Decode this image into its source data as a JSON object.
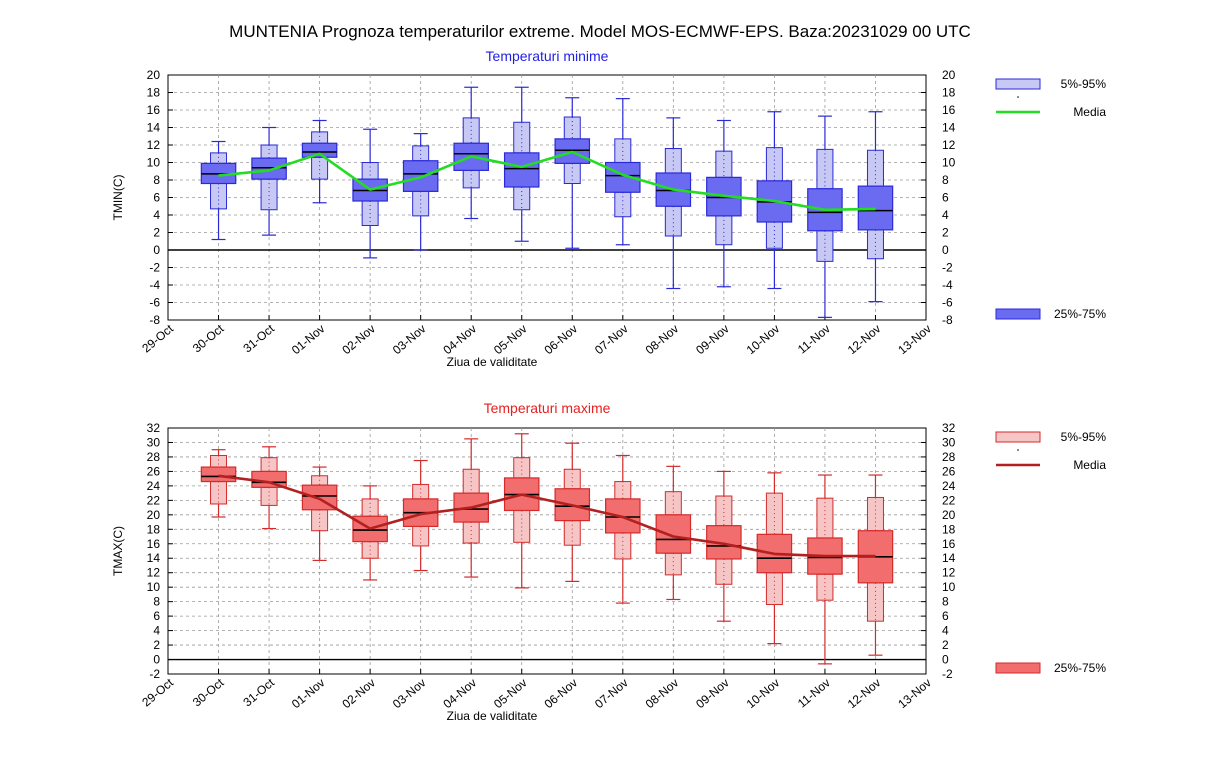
{
  "title": "MUNTENIA  Prognoza temperaturilor extreme.  Model MOS-ECMWF-EPS. Baza:20231029 00 UTC",
  "colors": {
    "min_light": "#c8c8f4",
    "min_dark": "#6b6bf2",
    "min_stroke": "#2a2ad8",
    "min_line": "#22dd22",
    "min_title": "#1f1fe6",
    "max_light": "#f6c6c6",
    "max_dark": "#f26d6d",
    "max_stroke": "#d42a2a",
    "max_line": "#b22020",
    "max_title": "#e61f1f"
  },
  "chart_data": [
    {
      "type": "box",
      "id": "tmin",
      "title": "Temperaturi minime",
      "xlabel": "Ziua de validitate",
      "ylabel": "TMIN(C)",
      "ylim": [
        -8,
        20
      ],
      "yticks": [
        -8,
        -6,
        -4,
        -2,
        0,
        2,
        4,
        6,
        8,
        10,
        12,
        14,
        16,
        18,
        20
      ],
      "x_ticklabels": [
        "29-Oct",
        "30-Oct",
        "31-Oct",
        "01-Nov",
        "02-Nov",
        "03-Nov",
        "04-Nov",
        "05-Nov",
        "06-Nov",
        "07-Nov",
        "08-Nov",
        "09-Nov",
        "10-Nov",
        "11-Nov",
        "12-Nov",
        "13-Nov"
      ],
      "categories": [
        "30-Oct",
        "31-Oct",
        "01-Nov",
        "02-Nov",
        "03-Nov",
        "04-Nov",
        "05-Nov",
        "06-Nov",
        "07-Nov",
        "08-Nov",
        "09-Nov",
        "10-Nov",
        "11-Nov",
        "12-Nov"
      ],
      "boxes": [
        {
          "min": 1.2,
          "p5": 4.7,
          "p25": 7.6,
          "median": 8.7,
          "p75": 9.9,
          "p95": 11.1,
          "max": 12.4
        },
        {
          "min": 1.7,
          "p5": 4.6,
          "p25": 8.1,
          "median": 9.4,
          "p75": 10.5,
          "p95": 12.0,
          "max": 14.0
        },
        {
          "min": 5.4,
          "p5": 8.1,
          "p25": 10.6,
          "median": 11.2,
          "p75": 12.2,
          "p95": 13.5,
          "max": 14.8
        },
        {
          "min": -0.9,
          "p5": 2.8,
          "p25": 5.6,
          "median": 6.8,
          "p75": 8.1,
          "p95": 10.0,
          "max": 13.8
        },
        {
          "min": 0.0,
          "p5": 3.9,
          "p25": 6.7,
          "median": 8.7,
          "p75": 10.2,
          "p95": 11.9,
          "max": 13.3
        },
        {
          "min": 3.6,
          "p5": 7.1,
          "p25": 9.1,
          "median": 11.0,
          "p75": 12.2,
          "p95": 15.1,
          "max": 18.6
        },
        {
          "min": 1.0,
          "p5": 4.6,
          "p25": 7.2,
          "median": 9.3,
          "p75": 11.1,
          "p95": 14.6,
          "max": 18.6
        },
        {
          "min": 0.2,
          "p5": 7.6,
          "p25": 9.9,
          "median": 11.4,
          "p75": 12.7,
          "p95": 15.2,
          "max": 17.4
        },
        {
          "min": 0.6,
          "p5": 3.8,
          "p25": 6.6,
          "median": 8.5,
          "p75": 10.0,
          "p95": 12.7,
          "max": 17.3
        },
        {
          "min": -4.4,
          "p5": 1.6,
          "p25": 5.0,
          "median": 6.8,
          "p75": 8.8,
          "p95": 11.6,
          "max": 15.1
        },
        {
          "min": -4.2,
          "p5": 0.6,
          "p25": 3.9,
          "median": 6.0,
          "p75": 8.3,
          "p95": 11.3,
          "max": 14.8
        },
        {
          "min": -4.4,
          "p5": 0.2,
          "p25": 3.2,
          "median": 5.5,
          "p75": 7.9,
          "p95": 11.7,
          "max": 15.8
        },
        {
          "min": -7.7,
          "p5": -1.3,
          "p25": 2.2,
          "median": 4.3,
          "p75": 7.0,
          "p95": 11.5,
          "max": 15.3
        },
        {
          "min": -5.9,
          "p5": -1.0,
          "p25": 2.3,
          "median": 4.5,
          "p75": 7.3,
          "p95": 11.4,
          "max": 15.8
        }
      ],
      "mean": [
        8.5,
        9.1,
        11.0,
        6.9,
        8.3,
        10.7,
        9.5,
        11.2,
        8.6,
        6.9,
        6.2,
        5.6,
        4.6,
        4.7
      ],
      "legend": {
        "band_5_95": "5%-95%",
        "mean": "Media",
        "band_25_75": "25%-75%"
      }
    },
    {
      "type": "box",
      "id": "tmax",
      "title": "Temperaturi maxime",
      "xlabel": "Ziua de validitate",
      "ylabel": "TMAX(C)",
      "ylim": [
        -2,
        32
      ],
      "yticks": [
        -2,
        0,
        2,
        4,
        6,
        8,
        10,
        12,
        14,
        16,
        18,
        20,
        22,
        24,
        26,
        28,
        30,
        32
      ],
      "x_ticklabels": [
        "29-Oct",
        "30-Oct",
        "31-Oct",
        "01-Nov",
        "02-Nov",
        "03-Nov",
        "04-Nov",
        "05-Nov",
        "06-Nov",
        "07-Nov",
        "08-Nov",
        "09-Nov",
        "10-Nov",
        "11-Nov",
        "12-Nov",
        "13-Nov"
      ],
      "categories": [
        "30-Oct",
        "31-Oct",
        "01-Nov",
        "02-Nov",
        "03-Nov",
        "04-Nov",
        "05-Nov",
        "06-Nov",
        "07-Nov",
        "08-Nov",
        "09-Nov",
        "10-Nov",
        "11-Nov",
        "12-Nov"
      ],
      "boxes": [
        {
          "min": 19.7,
          "p5": 21.5,
          "p25": 24.6,
          "median": 25.3,
          "p75": 26.6,
          "p95": 28.2,
          "max": 29.0
        },
        {
          "min": 18.1,
          "p5": 21.3,
          "p25": 23.8,
          "median": 24.5,
          "p75": 26.0,
          "p95": 27.9,
          "max": 29.4
        },
        {
          "min": 13.7,
          "p5": 17.8,
          "p25": 20.7,
          "median": 22.6,
          "p75": 24.1,
          "p95": 25.4,
          "max": 26.6
        },
        {
          "min": 11.0,
          "p5": 14.0,
          "p25": 16.3,
          "median": 17.9,
          "p75": 19.8,
          "p95": 22.2,
          "max": 24.0
        },
        {
          "min": 12.3,
          "p5": 15.7,
          "p25": 18.4,
          "median": 20.3,
          "p75": 22.2,
          "p95": 24.2,
          "max": 27.5
        },
        {
          "min": 11.4,
          "p5": 16.1,
          "p25": 19.0,
          "median": 20.8,
          "p75": 23.0,
          "p95": 26.3,
          "max": 30.5
        },
        {
          "min": 9.9,
          "p5": 16.2,
          "p25": 20.6,
          "median": 22.8,
          "p75": 25.1,
          "p95": 27.9,
          "max": 31.2
        },
        {
          "min": 10.8,
          "p5": 15.8,
          "p25": 19.2,
          "median": 21.2,
          "p75": 23.6,
          "p95": 26.3,
          "max": 29.9
        },
        {
          "min": 7.8,
          "p5": 13.9,
          "p25": 17.5,
          "median": 19.7,
          "p75": 22.2,
          "p95": 24.6,
          "max": 28.2
        },
        {
          "min": 8.3,
          "p5": 11.7,
          "p25": 14.7,
          "median": 16.6,
          "p75": 20.0,
          "p95": 23.2,
          "max": 26.7
        },
        {
          "min": 5.3,
          "p5": 10.4,
          "p25": 13.9,
          "median": 15.7,
          "p75": 18.5,
          "p95": 22.6,
          "max": 26.0
        },
        {
          "min": 2.2,
          "p5": 7.6,
          "p25": 12.0,
          "median": 14.0,
          "p75": 17.3,
          "p95": 23.0,
          "max": 25.8
        },
        {
          "min": -0.6,
          "p5": 8.2,
          "p25": 11.8,
          "median": 14.1,
          "p75": 16.8,
          "p95": 22.3,
          "max": 25.5
        },
        {
          "min": 0.6,
          "p5": 5.3,
          "p25": 10.6,
          "median": 14.2,
          "p75": 17.8,
          "p95": 22.4,
          "max": 25.5
        }
      ],
      "mean": [
        25.4,
        24.5,
        22.2,
        18.1,
        20.1,
        21.0,
        22.8,
        21.3,
        19.7,
        17.0,
        16.0,
        14.6,
        14.3,
        14.3
      ],
      "legend": {
        "band_5_95": "5%-95%",
        "mean": "Media",
        "band_25_75": "25%-75%"
      }
    }
  ]
}
